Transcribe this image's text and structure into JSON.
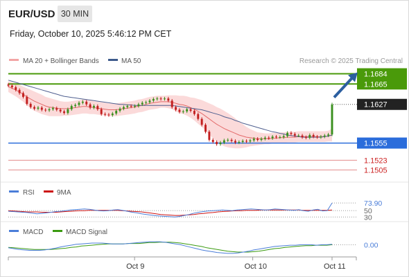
{
  "header": {
    "symbol": "EUR/USD",
    "timeframe": "30 MIN",
    "datetime": "Friday, October 10, 2025 5:46:12 PM CET"
  },
  "legend": {
    "bollinger_label": "MA 20 + Bollinger Bands",
    "ma50_label": "MA 50",
    "credit": "Research © 2025 Trading Central"
  },
  "colors": {
    "green_level": "#4a9a0a",
    "blue_level": "#2b6ddb",
    "red_level": "#e38c8c",
    "price_badge": "#222222",
    "arrow": "#2c5fa0",
    "bollinger_fill": "#fbd6d6",
    "ma20": "#e36a6a",
    "ma50": "#4f5f8f",
    "bull_candle": "#3a8f1e",
    "bear_candle": "#c21f1f",
    "rsi": "#4a7dd8",
    "rsi_ma": "#cc1111",
    "macd": "#4a7dd8",
    "macd_signal": "#3a9a10"
  },
  "chart_data": [
    {
      "type": "line",
      "title": "EUR/USD 30 MIN",
      "x_ticks": [
        "Oct 9",
        "Oct 10",
        "Oct 11"
      ],
      "ylim": [
        1.149,
        1.1695
      ],
      "levels": [
        {
          "value": 1.1684,
          "label": "1.1684",
          "kind": "resistance",
          "style": "green"
        },
        {
          "value": 1.1665,
          "label": "1.1665",
          "kind": "resistance",
          "style": "green"
        },
        {
          "value": 1.1627,
          "label": "1.1627",
          "kind": "last_price",
          "style": "dark"
        },
        {
          "value": 1.1555,
          "label": "1.1555",
          "kind": "pivot",
          "style": "blue"
        },
        {
          "value": 1.1523,
          "label": "1.1523",
          "kind": "support",
          "style": "red"
        },
        {
          "value": 1.1505,
          "label": "1.1505",
          "kind": "support",
          "style": "red"
        }
      ],
      "close": [
        1.1662,
        1.1659,
        1.1654,
        1.1648,
        1.1641,
        1.1628,
        1.1622,
        1.1619,
        1.1621,
        1.1617,
        1.1616,
        1.1618,
        1.162,
        1.1617,
        1.1614,
        1.1611,
        1.1618,
        1.1624,
        1.1626,
        1.163,
        1.1632,
        1.1627,
        1.1621,
        1.1624,
        1.1618,
        1.1609,
        1.1608,
        1.1607,
        1.161,
        1.1615,
        1.1619,
        1.1622,
        1.1624,
        1.1623,
        1.1624,
        1.1627,
        1.163,
        1.1631,
        1.1634,
        1.1637,
        1.1638,
        1.1637,
        1.1638,
        1.1634,
        1.1622,
        1.1617,
        1.1613,
        1.1614,
        1.1618,
        1.1615,
        1.1609,
        1.16,
        1.1589,
        1.1576,
        1.1561,
        1.1557,
        1.1553,
        1.1556,
        1.156,
        1.1561,
        1.1559,
        1.1556,
        1.1557,
        1.1559,
        1.1558,
        1.156,
        1.1563,
        1.1561,
        1.1563,
        1.1565,
        1.1564,
        1.1567,
        1.1566,
        1.1566,
        1.1568,
        1.1574,
        1.1572,
        1.1569,
        1.1569,
        1.1566,
        1.1565,
        1.157,
        1.1567,
        1.1566,
        1.1567,
        1.1569,
        1.1571,
        1.1627
      ],
      "ma20": [
        1.166,
        1.1657,
        1.1654,
        1.165,
        1.1646,
        1.1641,
        1.1637,
        1.1633,
        1.163,
        1.1627,
        1.1624,
        1.1622,
        1.1621,
        1.162,
        1.1619,
        1.1619,
        1.1619,
        1.162,
        1.1621,
        1.1622,
        1.1623,
        1.1623,
        1.1622,
        1.1621,
        1.162,
        1.1619,
        1.1618,
        1.1617,
        1.1617,
        1.1617,
        1.1618,
        1.1619,
        1.162,
        1.1621,
        1.1622,
        1.1624,
        1.1625,
        1.1627,
        1.1629,
        1.163,
        1.1631,
        1.1632,
        1.1632,
        1.1632,
        1.1631,
        1.1629,
        1.1627,
        1.1626,
        1.1624,
        1.1621,
        1.1618,
        1.1614,
        1.161,
        1.1605,
        1.16,
        1.1595,
        1.159,
        1.1586,
        1.1582,
        1.1579,
        1.1576,
        1.1573,
        1.157,
        1.1568,
        1.1566,
        1.1565,
        1.1564,
        1.1563,
        1.1563,
        1.1563,
        1.1563,
        1.1564,
        1.1564,
        1.1565,
        1.1565,
        1.1566,
        1.1566,
        1.1566,
        1.1567,
        1.1567,
        1.1567,
        1.1567,
        1.1567,
        1.1567,
        1.1567,
        1.1567,
        1.1568,
        1.157
      ],
      "ma50": [
        1.1672,
        1.167,
        1.1668,
        1.1666,
        1.1664,
        1.1662,
        1.166,
        1.1658,
        1.1656,
        1.1654,
        1.1652,
        1.165,
        1.1648,
        1.1646,
        1.1644,
        1.1642,
        1.1641,
        1.164,
        1.1639,
        1.1638,
        1.1637,
        1.1636,
        1.1635,
        1.1634,
        1.1633,
        1.1632,
        1.1631,
        1.163,
        1.1629,
        1.1628,
        1.1627,
        1.1627,
        1.1626,
        1.1626,
        1.1625,
        1.1625,
        1.1625,
        1.1625,
        1.1625,
        1.1625,
        1.1625,
        1.1625,
        1.1625,
        1.1625,
        1.1625,
        1.1624,
        1.1623,
        1.1622,
        1.1621,
        1.162,
        1.1619,
        1.1618,
        1.1617,
        1.1615,
        1.1613,
        1.1611,
        1.1609,
        1.1607,
        1.1604,
        1.1602,
        1.16,
        1.1597,
        1.1595,
        1.1592,
        1.159,
        1.1588,
        1.1586,
        1.1584,
        1.1582,
        1.158,
        1.1578,
        1.1576,
        1.1575,
        1.1573,
        1.1572,
        1.157,
        1.1569,
        1.1568,
        1.1567,
        1.1566,
        1.1566,
        1.1566,
        1.1566,
        1.1566,
        1.1566,
        1.1567,
        1.1568,
        1.157
      ],
      "bb_width": [
        0.001,
        0.0011,
        0.0012,
        0.0013,
        0.0014,
        0.0016,
        0.0017,
        0.0018,
        0.0018,
        0.0018,
        0.0017,
        0.0017,
        0.0016,
        0.0015,
        0.0014,
        0.0013,
        0.0013,
        0.0013,
        0.0013,
        0.0013,
        0.0013,
        0.0013,
        0.0013,
        0.0012,
        0.0012,
        0.0012,
        0.0012,
        0.0012,
        0.0012,
        0.0012,
        0.0012,
        0.0012,
        0.0012,
        0.0012,
        0.0012,
        0.0012,
        0.0012,
        0.0012,
        0.0012,
        0.0012,
        0.0012,
        0.0011,
        0.0011,
        0.0012,
        0.0013,
        0.0015,
        0.0016,
        0.0017,
        0.0018,
        0.0019,
        0.0021,
        0.0023,
        0.0025,
        0.0027,
        0.0029,
        0.0031,
        0.0032,
        0.0033,
        0.0033,
        0.0032,
        0.003,
        0.0028,
        0.0025,
        0.0022,
        0.0019,
        0.0016,
        0.0014,
        0.0012,
        0.0011,
        0.001,
        0.001,
        0.001,
        0.001,
        0.001,
        0.001,
        0.001,
        0.001,
        0.001,
        0.001,
        0.001,
        0.001,
        0.001,
        0.001,
        0.001,
        0.001,
        0.001,
        0.001,
        0.0012
      ],
      "arrow": {
        "from_value": 1.164,
        "to_value": 1.1684
      },
      "legend": [
        "MA 20 + Bollinger Bands",
        "MA 50"
      ]
    },
    {
      "type": "line",
      "title": "RSI",
      "series_names": [
        "RSI",
        "9MA"
      ],
      "levels": [
        {
          "value": 73.9,
          "label": "73.90"
        },
        {
          "value": 50,
          "label": "50"
        },
        {
          "value": 30,
          "label": "30"
        }
      ],
      "ylim": [
        20,
        85
      ],
      "rsi": [
        48,
        47,
        46,
        45,
        44,
        42,
        40,
        41,
        43,
        45,
        47,
        48,
        50,
        52,
        53,
        54,
        55,
        54,
        52,
        50,
        49,
        50,
        52,
        53,
        51,
        48,
        45,
        43,
        40,
        38,
        36,
        34,
        33,
        32,
        31,
        30,
        32,
        35,
        38,
        42,
        45,
        47,
        49,
        50,
        51,
        52,
        51,
        50,
        52,
        53,
        54,
        55,
        54,
        53,
        52,
        53,
        55,
        54,
        53,
        52,
        51,
        53,
        50,
        48,
        52,
        54,
        49,
        50,
        73.9
      ],
      "rsi_ma": [
        50,
        49,
        48,
        47,
        46,
        46,
        46,
        45,
        45,
        45,
        45,
        46,
        47,
        48,
        49,
        50,
        50,
        51,
        51,
        51,
        51,
        51,
        51,
        51,
        50,
        49,
        48,
        47,
        46,
        44,
        42,
        40,
        38,
        37,
        36,
        35,
        35,
        36,
        37,
        38,
        40,
        41,
        43,
        44,
        46,
        47,
        48,
        49,
        50,
        50,
        51,
        51,
        51,
        52,
        52,
        52,
        52,
        52,
        52,
        52,
        52,
        52,
        51,
        51,
        51,
        51,
        51,
        51,
        52
      ]
    },
    {
      "type": "line",
      "title": "MACD",
      "series_names": [
        "MACD",
        "MACD Signal"
      ],
      "levels": [
        {
          "value": 0.0,
          "label": "0.00"
        }
      ],
      "ylim": [
        -0.0025,
        0.002
      ],
      "macd": [
        -0.0007,
        -0.0009,
        -0.0011,
        -0.0012,
        -0.0013,
        -0.0013,
        -0.0013,
        -0.0012,
        -0.001,
        -0.0008,
        -0.0005,
        -0.0003,
        -0.0001,
        0.0001,
        0.0002,
        0.0003,
        0.0004,
        0.0004,
        0.0004,
        0.0003,
        0.0002,
        0.0002,
        0.0002,
        0.0003,
        0.0004,
        0.0005,
        0.0006,
        0.0007,
        0.0007,
        0.0007,
        0.0006,
        0.0004,
        0.0002,
        0.0,
        -0.0003,
        -0.0006,
        -0.0009,
        -0.0012,
        -0.0014,
        -0.0016,
        -0.0018,
        -0.0019,
        -0.002,
        -0.002,
        -0.0019,
        -0.0017,
        -0.0015,
        -0.0012,
        -0.001,
        -0.0008,
        -0.0006,
        -0.0004,
        -0.0003,
        -0.0002,
        -0.0001,
        -0.0001,
        0.0,
        0.0,
        0.0,
        -0.0001,
        0.0,
        0.0,
        0.0001
      ],
      "signal": [
        -0.0006,
        -0.0007,
        -0.0008,
        -0.0009,
        -0.001,
        -0.0011,
        -0.0011,
        -0.0011,
        -0.0011,
        -0.001,
        -0.0009,
        -0.0008,
        -0.0006,
        -0.0005,
        -0.0003,
        -0.0002,
        -0.0001,
        0.0,
        0.0001,
        0.0002,
        0.0002,
        0.0002,
        0.0002,
        0.0003,
        0.0003,
        0.0003,
        0.0004,
        0.0005,
        0.0005,
        0.0006,
        0.0006,
        0.0006,
        0.0005,
        0.0004,
        0.0002,
        0.0,
        -0.0002,
        -0.0004,
        -0.0007,
        -0.0009,
        -0.0011,
        -0.0013,
        -0.0015,
        -0.0016,
        -0.0017,
        -0.0017,
        -0.0017,
        -0.0016,
        -0.0015,
        -0.0013,
        -0.0011,
        -0.0009,
        -0.0008,
        -0.0006,
        -0.0005,
        -0.0004,
        -0.0003,
        -0.0002,
        -0.0002,
        -0.0001,
        -0.0001,
        -0.0001,
        0.0
      ]
    }
  ],
  "sub_panels": {
    "rsi": {
      "label": "RSI",
      "ma_label": "9MA"
    },
    "macd": {
      "label": "MACD",
      "signal_label": "MACD Signal"
    }
  }
}
